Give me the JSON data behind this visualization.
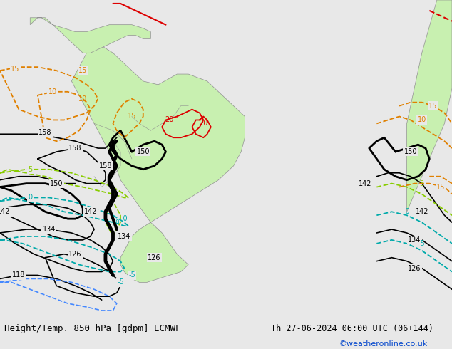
{
  "title_left": "Height/Temp. 850 hPa [gdpm] ECMWF",
  "title_right": "Th 27-06-2024 06:00 UTC (06+144)",
  "copyright": "©weatheronline.co.uk",
  "fig_width": 6.34,
  "fig_height": 4.9,
  "dpi": 100,
  "bg_color": "#e8e8e8",
  "land_color": "#c8f0b0",
  "ocean_color": "#e8e8e8",
  "border_color": "#909090",
  "copyright_color": "#0044cc",
  "black_contour_color": "#000000",
  "orange_contour_color": "#e08000",
  "red_contour_color": "#dd0000",
  "cyan_contour_color": "#00aaaa",
  "green_contour_color": "#88cc00",
  "blue_contour_color": "#4488ff"
}
